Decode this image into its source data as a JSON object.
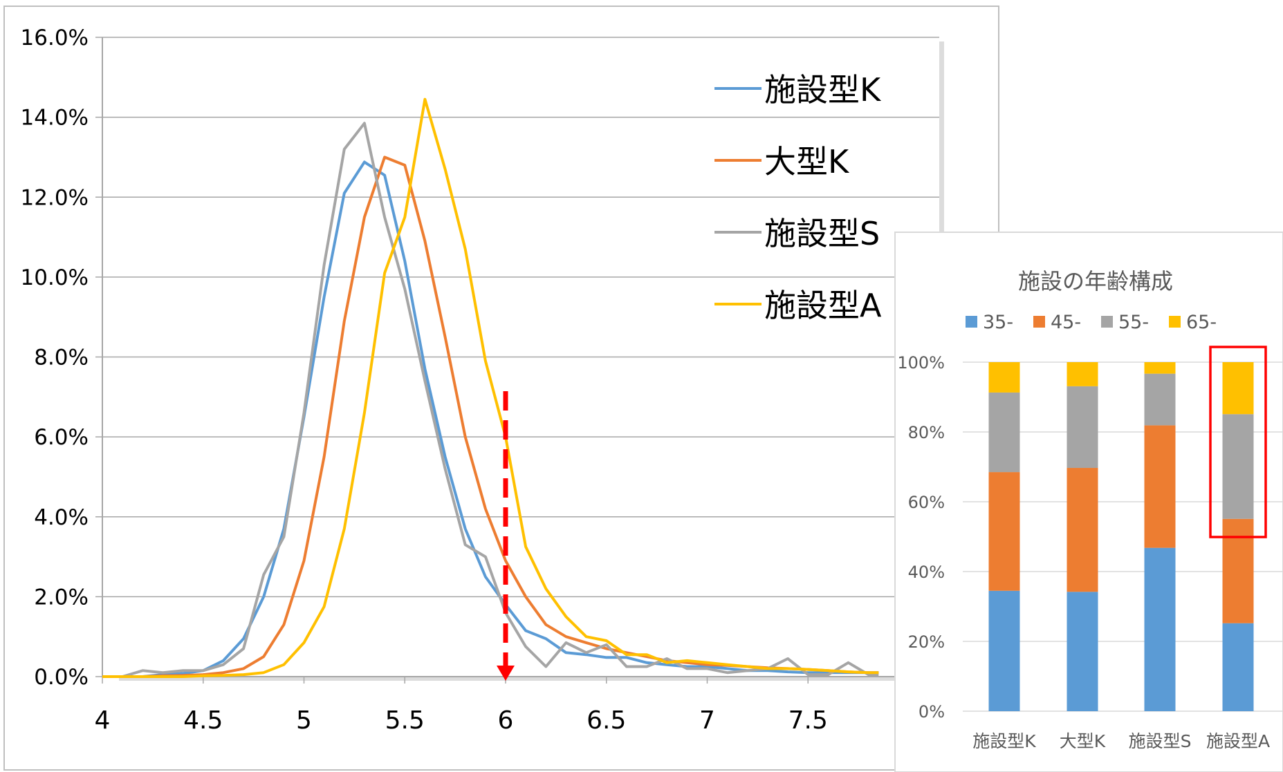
{
  "colors": {
    "k_facility": "#5B9BD5",
    "large_k": "#ED7D31",
    "s_facility": "#A5A5A5",
    "a_facility": "#FFC000",
    "marker": "#FF0000",
    "gridline": "#A6A6A6"
  },
  "chart_data": [
    {
      "type": "line",
      "title": "",
      "xlabel": "",
      "ylabel": "",
      "xlim": [
        4,
        7.85
      ],
      "ylim": [
        0,
        0.16
      ],
      "x_ticks": [
        "4",
        "4.5",
        "5",
        "5.5",
        "6",
        "6.5",
        "7",
        "7.5"
      ],
      "y_ticks": [
        "0.0%",
        "2.0%",
        "4.0%",
        "6.0%",
        "8.0%",
        "10.0%",
        "12.0%",
        "14.0%",
        "16.0%"
      ],
      "grid": "horizontal",
      "legend": "top-right",
      "marker_arrow_x": 6,
      "x": [
        4.0,
        4.1,
        4.2,
        4.3,
        4.4,
        4.5,
        4.6,
        4.7,
        4.8,
        4.9,
        5.0,
        5.1,
        5.2,
        5.3,
        5.4,
        5.5,
        5.6,
        5.7,
        5.8,
        5.9,
        6.0,
        6.1,
        6.2,
        6.3,
        6.4,
        6.5,
        6.6,
        6.7,
        6.8,
        6.9,
        7.0,
        7.1,
        7.2,
        7.3,
        7.4,
        7.5,
        7.6,
        7.7,
        7.8,
        7.85
      ],
      "series": [
        {
          "name": "施設型K",
          "color_key": "k_facility",
          "values": [
            0.0,
            0.0,
            0.0,
            0.0005,
            0.0008,
            0.0015,
            0.004,
            0.0095,
            0.02,
            0.037,
            0.065,
            0.095,
            0.121,
            0.1288,
            0.1255,
            0.104,
            0.077,
            0.055,
            0.037,
            0.025,
            0.018,
            0.0115,
            0.0095,
            0.006,
            0.0055,
            0.0048,
            0.0048,
            0.0035,
            0.003,
            0.0025,
            0.0025,
            0.002,
            0.0015,
            0.0015,
            0.0012,
            0.001,
            0.001,
            0.001,
            0.001,
            0.001
          ]
        },
        {
          "name": "大型K",
          "color_key": "large_k",
          "values": [
            0.0,
            0.0,
            0.0,
            0.0002,
            0.0003,
            0.0005,
            0.001,
            0.002,
            0.005,
            0.013,
            0.029,
            0.055,
            0.089,
            0.115,
            0.13,
            0.128,
            0.109,
            0.085,
            0.06,
            0.042,
            0.029,
            0.02,
            0.013,
            0.01,
            0.0085,
            0.007,
            0.006,
            0.005,
            0.004,
            0.0035,
            0.003,
            0.0028,
            0.0025,
            0.0022,
            0.002,
            0.0018,
            0.0015,
            0.0012,
            0.001,
            0.001
          ]
        },
        {
          "name": "施設型S",
          "color_key": "s_facility",
          "values": [
            0.0,
            0.0,
            0.0015,
            0.001,
            0.0015,
            0.0015,
            0.003,
            0.007,
            0.0255,
            0.035,
            0.066,
            0.103,
            0.132,
            0.1385,
            0.115,
            0.097,
            0.074,
            0.052,
            0.033,
            0.03,
            0.016,
            0.0075,
            0.0025,
            0.0085,
            0.006,
            0.008,
            0.0025,
            0.0025,
            0.0045,
            0.002,
            0.002,
            0.001,
            0.0015,
            0.002,
            0.0045,
            0.0005,
            0.0005,
            0.0035,
            0.0005,
            0.0005
          ]
        },
        {
          "name": "施設型A",
          "color_key": "a_facility",
          "values": [
            0.0,
            0.0,
            0.0,
            0.0,
            0.0,
            0.0002,
            0.0003,
            0.0005,
            0.001,
            0.003,
            0.0085,
            0.0175,
            0.037,
            0.066,
            0.101,
            0.115,
            0.1445,
            0.127,
            0.107,
            0.079,
            0.06,
            0.0325,
            0.022,
            0.015,
            0.01,
            0.009,
            0.0055,
            0.0055,
            0.0035,
            0.004,
            0.0035,
            0.003,
            0.0025,
            0.002,
            0.002,
            0.0018,
            0.0015,
            0.0012,
            0.001,
            0.001
          ]
        }
      ]
    },
    {
      "type": "bar",
      "stacked": true,
      "title": "施設の年齢構成",
      "categories": [
        "施設型K",
        "大型K",
        "施設型S",
        "施設型A"
      ],
      "y_ticks": [
        "0%",
        "20%",
        "40%",
        "60%",
        "80%",
        "100%"
      ],
      "ylim": [
        0,
        1
      ],
      "legend": "top",
      "highlighted_category": "施設型A",
      "series": [
        {
          "name": "35-",
          "color_key": "k_facility",
          "values": [
            0.345,
            0.342,
            0.468,
            0.252
          ]
        },
        {
          "name": "45-",
          "color_key": "large_k",
          "values": [
            0.34,
            0.355,
            0.351,
            0.299
          ]
        },
        {
          "name": "55-",
          "color_key": "s_facility",
          "values": [
            0.228,
            0.234,
            0.148,
            0.3
          ]
        },
        {
          "name": "65-",
          "color_key": "a_facility",
          "values": [
            0.087,
            0.069,
            0.033,
            0.149
          ]
        }
      ]
    }
  ]
}
